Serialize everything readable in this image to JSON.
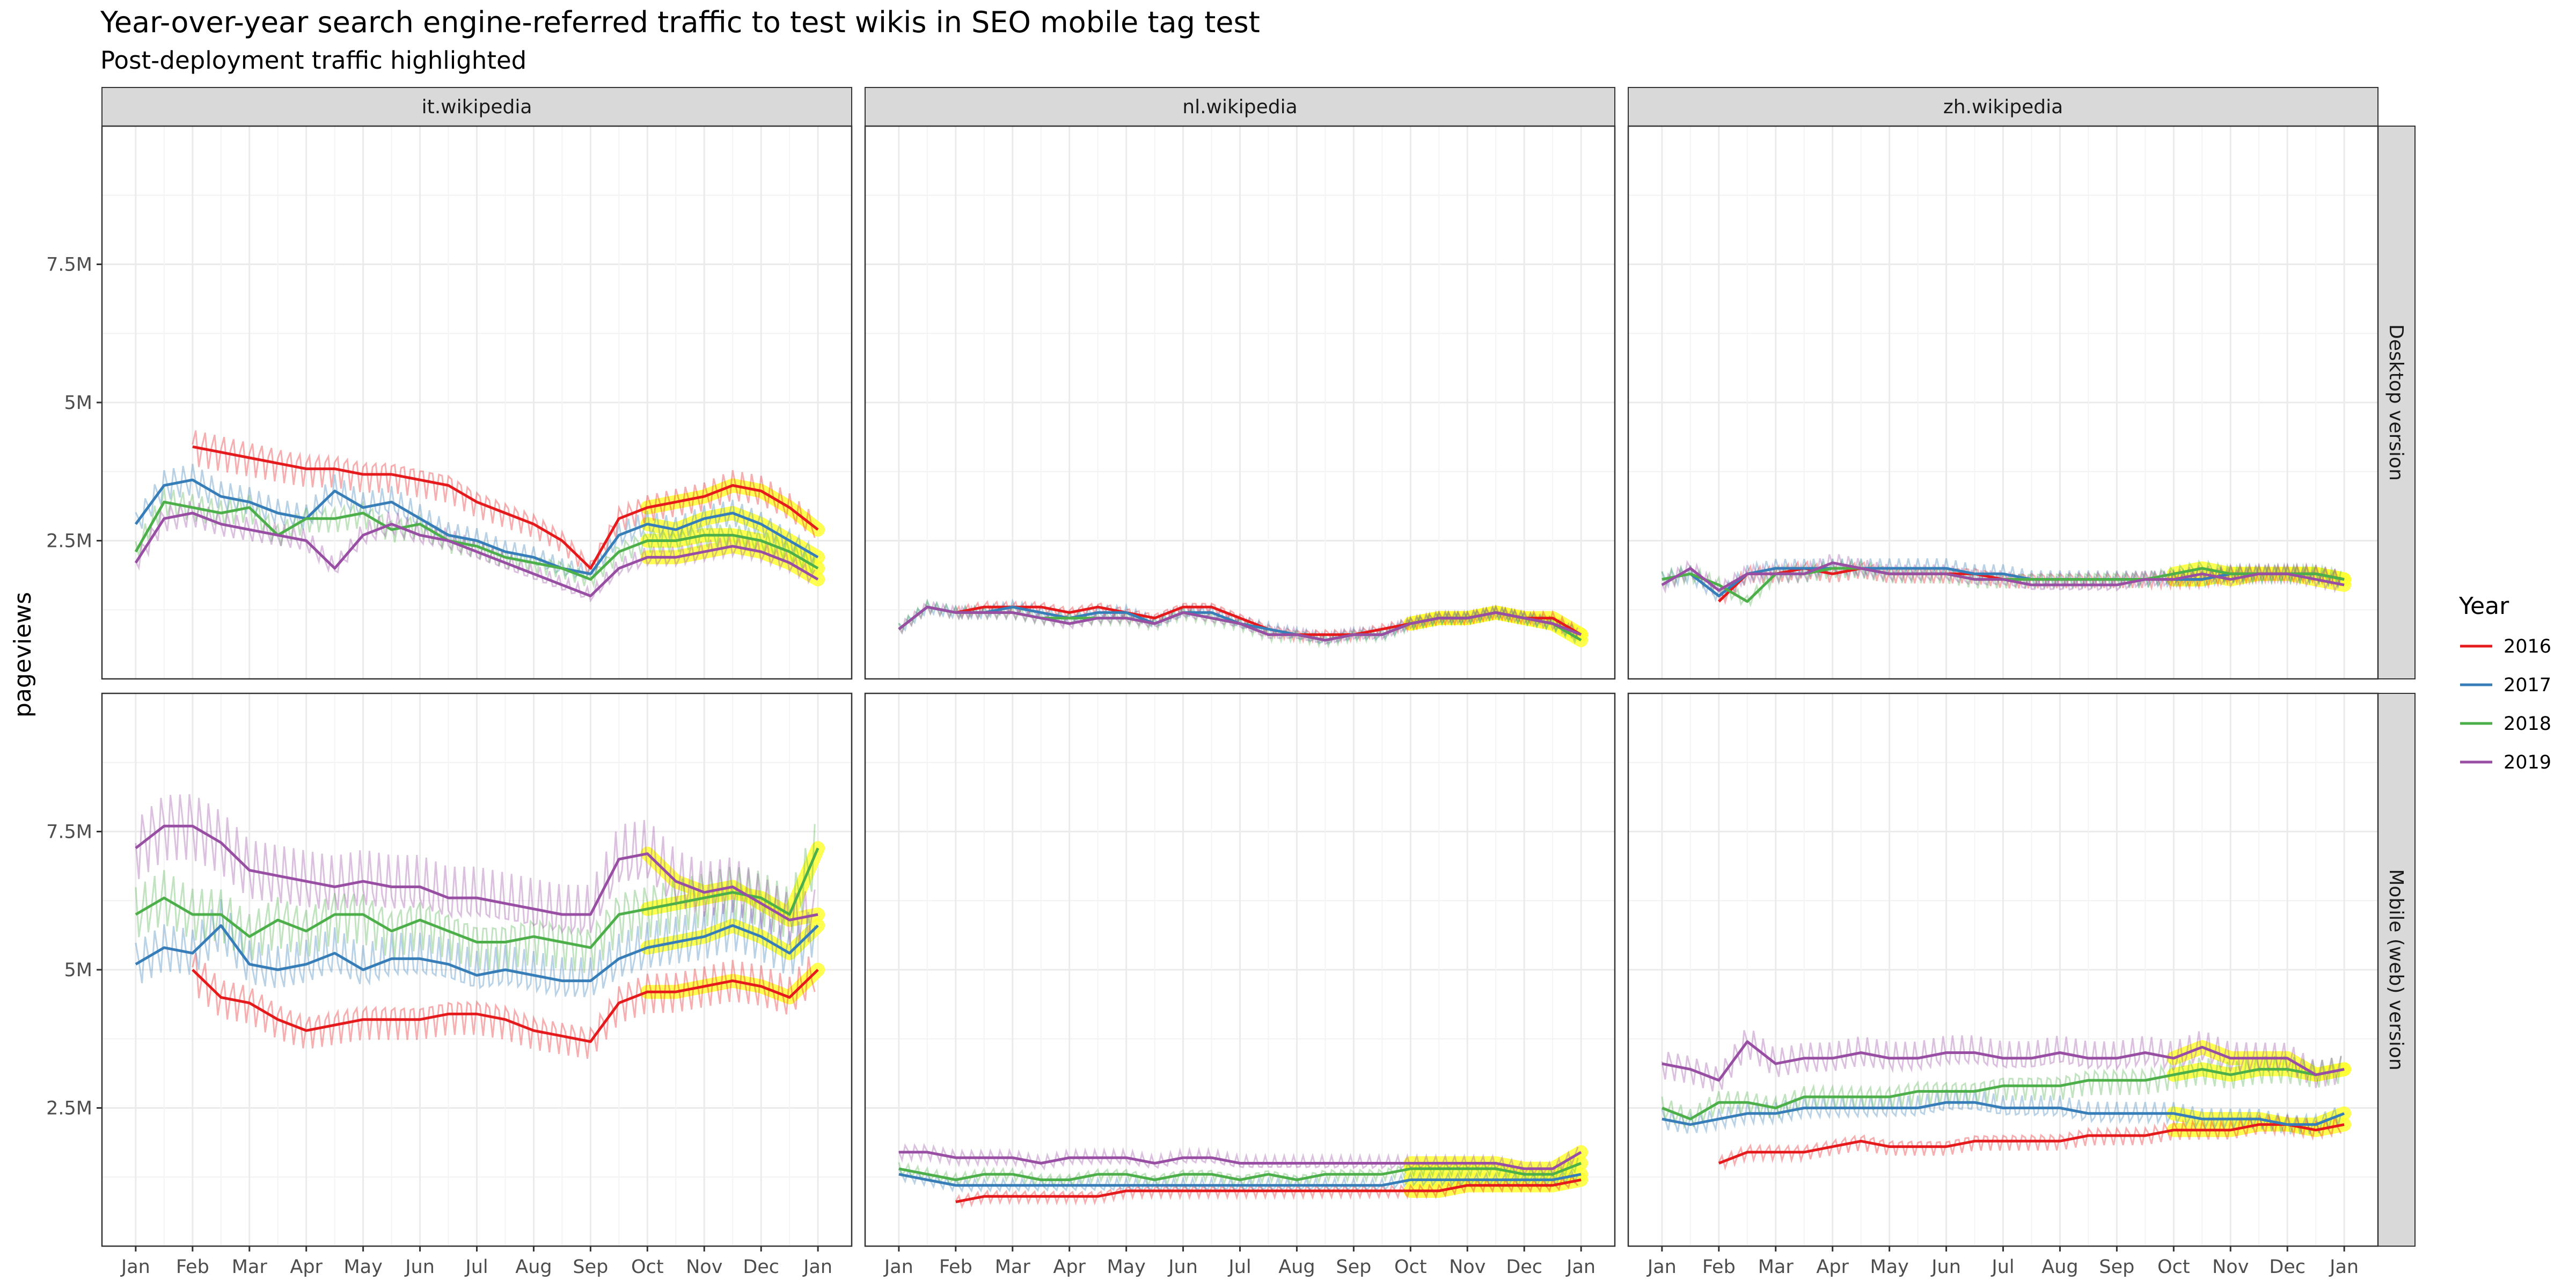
{
  "chart_data": {
    "type": "line",
    "title": "Year-over-year search engine-referred traffic to test wikis in SEO mobile tag test",
    "subtitle": "Post-deployment traffic highlighted",
    "xlabel": "",
    "ylabel": "pageviews",
    "x_ticks": [
      "Jan",
      "Feb",
      "Mar",
      "Apr",
      "May",
      "Jun",
      "Jul",
      "Aug",
      "Sep",
      "Oct",
      "Nov",
      "Dec",
      "Jan"
    ],
    "y_ticks": [
      "2.5M",
      "5M",
      "7.5M"
    ],
    "ylim_millions": [
      0,
      10
    ],
    "grid": true,
    "legend": {
      "title": "Year",
      "position": "right"
    },
    "colors": {
      "2016": "#e41a1c",
      "2017": "#377eb8",
      "2018": "#4daf4a",
      "2019": "#984ea3",
      "highlight": "#ffff33"
    },
    "facet_columns": [
      "it.wikipedia",
      "nl.wikipedia",
      "zh.wikipedia"
    ],
    "facet_rows": [
      "Desktop version",
      "Mobile (web) version"
    ],
    "highlight_from_month": 9.3,
    "x_months": [
      0,
      0.5,
      1,
      1.5,
      2,
      2.5,
      3,
      3.5,
      4,
      4.5,
      5,
      5.5,
      6,
      6.5,
      7,
      7.5,
      8,
      8.5,
      9,
      9.5,
      10,
      10.5,
      11,
      11.5,
      12
    ],
    "panels": [
      {
        "wiki": "it.wikipedia",
        "version": "Desktop version",
        "series": [
          {
            "name": "2016",
            "start_index": 2,
            "values": [
              null,
              null,
              4.2,
              4.1,
              4.0,
              3.9,
              3.8,
              3.8,
              3.7,
              3.7,
              3.6,
              3.5,
              3.2,
              3.0,
              2.8,
              2.5,
              2.0,
              2.9,
              3.1,
              3.2,
              3.3,
              3.5,
              3.4,
              3.1,
              2.7
            ]
          },
          {
            "name": "2017",
            "values": [
              2.8,
              3.5,
              3.6,
              3.3,
              3.2,
              3.0,
              2.9,
              3.4,
              3.1,
              3.2,
              2.9,
              2.6,
              2.5,
              2.3,
              2.2,
              2.0,
              1.9,
              2.6,
              2.8,
              2.7,
              2.9,
              3.0,
              2.8,
              2.5,
              2.2
            ]
          },
          {
            "name": "2018",
            "values": [
              2.3,
              3.2,
              3.1,
              3.0,
              3.1,
              2.6,
              2.9,
              2.9,
              3.0,
              2.7,
              2.8,
              2.5,
              2.4,
              2.2,
              2.1,
              2.0,
              1.8,
              2.3,
              2.5,
              2.5,
              2.6,
              2.6,
              2.5,
              2.3,
              2.0
            ]
          },
          {
            "name": "2019",
            "values": [
              2.1,
              2.9,
              3.0,
              2.8,
              2.7,
              2.6,
              2.5,
              2.0,
              2.6,
              2.8,
              2.6,
              2.5,
              2.3,
              2.1,
              1.9,
              1.7,
              1.5,
              2.0,
              2.2,
              2.2,
              2.3,
              2.4,
              2.3,
              2.1,
              1.8
            ]
          }
        ]
      },
      {
        "wiki": "nl.wikipedia",
        "version": "Desktop version",
        "series": [
          {
            "name": "2016",
            "values": [
              null,
              null,
              1.2,
              1.3,
              1.3,
              1.3,
              1.2,
              1.3,
              1.2,
              1.1,
              1.3,
              1.3,
              1.1,
              0.9,
              0.8,
              0.8,
              0.8,
              0.9,
              1.0,
              1.1,
              1.1,
              1.2,
              1.1,
              1.1,
              0.8
            ]
          },
          {
            "name": "2017",
            "values": [
              0.9,
              1.3,
              1.2,
              1.2,
              1.3,
              1.2,
              1.1,
              1.2,
              1.2,
              1.0,
              1.2,
              1.2,
              1.0,
              0.9,
              0.8,
              0.7,
              0.8,
              0.8,
              1.0,
              1.1,
              1.1,
              1.2,
              1.1,
              1.0,
              0.8
            ]
          },
          {
            "name": "2018",
            "values": [
              0.9,
              1.3,
              1.2,
              1.2,
              1.2,
              1.1,
              1.1,
              1.1,
              1.1,
              1.0,
              1.2,
              1.1,
              1.0,
              0.8,
              0.8,
              0.7,
              0.8,
              0.8,
              1.0,
              1.1,
              1.1,
              1.2,
              1.1,
              1.0,
              0.7
            ]
          },
          {
            "name": "2019",
            "values": [
              0.9,
              1.3,
              1.2,
              1.2,
              1.2,
              1.1,
              1.0,
              1.1,
              1.1,
              1.0,
              1.2,
              1.1,
              1.0,
              0.8,
              0.8,
              0.7,
              0.8,
              0.8,
              1.0,
              1.1,
              1.1,
              1.2,
              1.1,
              1.0,
              0.8
            ]
          }
        ]
      },
      {
        "wiki": "zh.wikipedia",
        "version": "Desktop version",
        "series": [
          {
            "name": "2016",
            "values": [
              null,
              null,
              1.4,
              1.9,
              1.9,
              2.0,
              1.9,
              2.0,
              1.9,
              1.9,
              1.9,
              1.9,
              1.8,
              1.8,
              1.8,
              1.8,
              1.8,
              1.8,
              1.8,
              1.8,
              1.9,
              1.9,
              1.9,
              1.9,
              1.8
            ]
          },
          {
            "name": "2017",
            "values": [
              1.8,
              1.9,
              1.5,
              1.9,
              2.0,
              2.0,
              2.0,
              2.0,
              2.0,
              2.0,
              2.0,
              1.9,
              1.9,
              1.8,
              1.8,
              1.8,
              1.8,
              1.8,
              1.8,
              1.8,
              1.9,
              1.9,
              1.9,
              1.9,
              1.8
            ]
          },
          {
            "name": "2018",
            "values": [
              1.8,
              1.9,
              1.7,
              1.4,
              1.9,
              1.9,
              2.0,
              2.0,
              1.9,
              1.9,
              1.9,
              1.8,
              1.8,
              1.8,
              1.8,
              1.8,
              1.8,
              1.8,
              1.9,
              2.0,
              1.9,
              1.9,
              1.9,
              1.9,
              1.8
            ]
          },
          {
            "name": "2019",
            "values": [
              1.7,
              2.0,
              1.6,
              1.9,
              1.9,
              1.9,
              2.1,
              2.0,
              1.9,
              1.9,
              1.9,
              1.8,
              1.8,
              1.7,
              1.7,
              1.7,
              1.7,
              1.8,
              1.8,
              1.9,
              1.8,
              1.9,
              1.9,
              1.8,
              1.7
            ]
          }
        ]
      },
      {
        "wiki": "it.wikipedia",
        "version": "Mobile (web) version",
        "series": [
          {
            "name": "2016",
            "values": [
              null,
              null,
              5.0,
              4.5,
              4.4,
              4.1,
              3.9,
              4.0,
              4.1,
              4.1,
              4.1,
              4.2,
              4.2,
              4.1,
              3.9,
              3.8,
              3.7,
              4.4,
              4.6,
              4.6,
              4.7,
              4.8,
              4.7,
              4.5,
              5.0
            ]
          },
          {
            "name": "2017",
            "values": [
              5.1,
              5.4,
              5.3,
              5.8,
              5.1,
              5.0,
              5.1,
              5.3,
              5.0,
              5.2,
              5.2,
              5.1,
              4.9,
              5.0,
              4.9,
              4.8,
              4.8,
              5.2,
              5.4,
              5.5,
              5.6,
              5.8,
              5.6,
              5.3,
              5.8
            ]
          },
          {
            "name": "2018",
            "values": [
              6.0,
              6.3,
              6.0,
              6.0,
              5.6,
              5.9,
              5.7,
              6.0,
              6.0,
              5.7,
              5.9,
              5.7,
              5.5,
              5.5,
              5.6,
              5.5,
              5.4,
              6.0,
              6.1,
              6.2,
              6.3,
              6.4,
              6.3,
              6.0,
              7.2
            ]
          },
          {
            "name": "2019",
            "values": [
              7.2,
              7.6,
              7.6,
              7.3,
              6.8,
              6.7,
              6.6,
              6.5,
              6.6,
              6.5,
              6.5,
              6.3,
              6.3,
              6.2,
              6.1,
              6.0,
              6.0,
              7.0,
              7.1,
              6.6,
              6.4,
              6.5,
              6.2,
              5.9,
              6.0
            ]
          }
        ]
      },
      {
        "wiki": "nl.wikipedia",
        "version": "Mobile (web) version",
        "series": [
          {
            "name": "2016",
            "values": [
              null,
              null,
              0.8,
              0.9,
              0.9,
              0.9,
              0.9,
              0.9,
              1.0,
              1.0,
              1.0,
              1.0,
              1.0,
              1.0,
              1.0,
              1.0,
              1.0,
              1.0,
              1.0,
              1.0,
              1.1,
              1.1,
              1.1,
              1.1,
              1.2
            ]
          },
          {
            "name": "2017",
            "values": [
              1.3,
              1.2,
              1.1,
              1.1,
              1.1,
              1.1,
              1.1,
              1.1,
              1.1,
              1.1,
              1.1,
              1.1,
              1.1,
              1.1,
              1.1,
              1.1,
              1.1,
              1.1,
              1.2,
              1.2,
              1.2,
              1.2,
              1.2,
              1.2,
              1.3
            ]
          },
          {
            "name": "2018",
            "values": [
              1.4,
              1.3,
              1.2,
              1.3,
              1.3,
              1.2,
              1.2,
              1.3,
              1.3,
              1.2,
              1.3,
              1.3,
              1.2,
              1.3,
              1.2,
              1.3,
              1.3,
              1.3,
              1.4,
              1.4,
              1.4,
              1.4,
              1.3,
              1.3,
              1.5
            ]
          },
          {
            "name": "2019",
            "values": [
              1.7,
              1.7,
              1.6,
              1.6,
              1.6,
              1.5,
              1.6,
              1.6,
              1.6,
              1.5,
              1.6,
              1.6,
              1.5,
              1.5,
              1.5,
              1.5,
              1.5,
              1.5,
              1.5,
              1.5,
              1.5,
              1.5,
              1.4,
              1.4,
              1.7
            ]
          }
        ]
      },
      {
        "wiki": "zh.wikipedia",
        "version": "Mobile (web) version",
        "series": [
          {
            "name": "2016",
            "values": [
              null,
              null,
              1.5,
              1.7,
              1.7,
              1.7,
              1.8,
              1.9,
              1.8,
              1.8,
              1.8,
              1.9,
              1.9,
              1.9,
              1.9,
              2.0,
              2.0,
              2.0,
              2.1,
              2.1,
              2.1,
              2.2,
              2.2,
              2.1,
              2.2
            ]
          },
          {
            "name": "2017",
            "values": [
              2.3,
              2.2,
              2.3,
              2.4,
              2.4,
              2.5,
              2.5,
              2.5,
              2.5,
              2.5,
              2.6,
              2.6,
              2.5,
              2.5,
              2.5,
              2.4,
              2.4,
              2.4,
              2.4,
              2.3,
              2.3,
              2.3,
              2.2,
              2.2,
              2.4
            ]
          },
          {
            "name": "2018",
            "values": [
              2.5,
              2.3,
              2.6,
              2.6,
              2.5,
              2.7,
              2.7,
              2.7,
              2.7,
              2.8,
              2.8,
              2.8,
              2.9,
              2.9,
              2.9,
              3.0,
              3.0,
              3.0,
              3.1,
              3.2,
              3.1,
              3.2,
              3.2,
              3.1,
              3.2
            ]
          },
          {
            "name": "2019",
            "values": [
              3.3,
              3.2,
              3.0,
              3.7,
              3.3,
              3.4,
              3.4,
              3.5,
              3.4,
              3.4,
              3.5,
              3.5,
              3.4,
              3.4,
              3.5,
              3.4,
              3.4,
              3.5,
              3.4,
              3.6,
              3.4,
              3.4,
              3.4,
              3.1,
              3.2
            ]
          }
        ]
      }
    ]
  }
}
